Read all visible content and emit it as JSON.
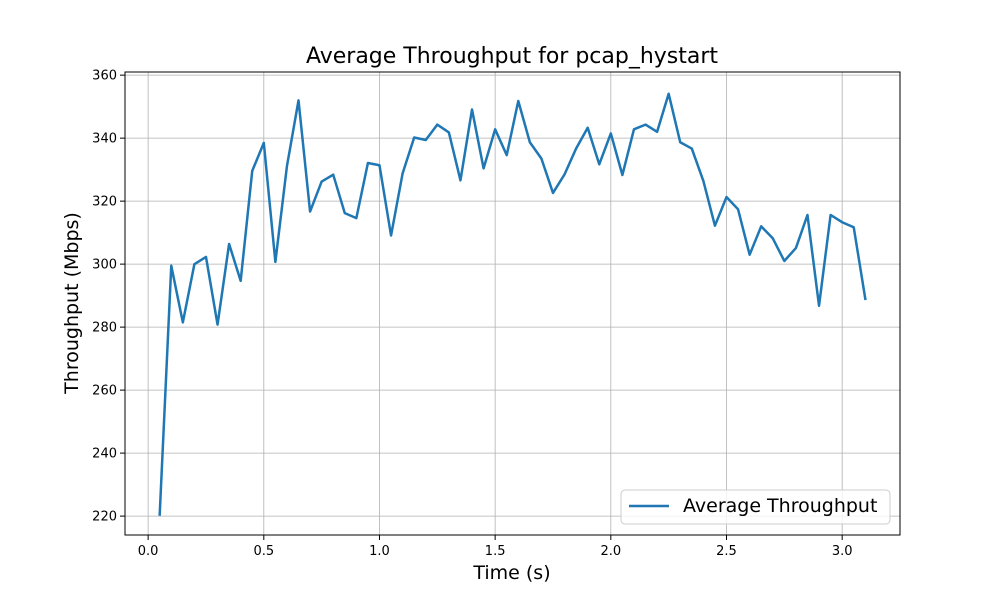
{
  "chart_data": {
    "type": "line",
    "title": "Average Throughput for pcap_hystart",
    "xlabel": "Time (s)",
    "ylabel": "Throughput (Mbps)",
    "xlim": [
      -0.1,
      3.25
    ],
    "ylim": [
      214,
      361
    ],
    "xticks": [
      0.0,
      0.5,
      1.0,
      1.5,
      2.0,
      2.5,
      3.0
    ],
    "xtick_labels": [
      "0.0",
      "0.5",
      "1.0",
      "1.5",
      "2.0",
      "2.5",
      "3.0"
    ],
    "yticks": [
      220,
      240,
      260,
      280,
      300,
      320,
      340,
      360
    ],
    "ytick_labels": [
      "220",
      "240",
      "260",
      "280",
      "300",
      "320",
      "340",
      "360"
    ],
    "grid": true,
    "legend_position": "lower-right",
    "series": [
      {
        "name": "Average Throughput",
        "color": "#1f77b4",
        "x": [
          0.05,
          0.1,
          0.15,
          0.2,
          0.25,
          0.3,
          0.35,
          0.4,
          0.45,
          0.5,
          0.55,
          0.6,
          0.65,
          0.7,
          0.75,
          0.8,
          0.85,
          0.9,
          0.95,
          1.0,
          1.05,
          1.1,
          1.15,
          1.2,
          1.25,
          1.3,
          1.35,
          1.4,
          1.45,
          1.5,
          1.55,
          1.6,
          1.65,
          1.7,
          1.75,
          1.8,
          1.85,
          1.9,
          1.95,
          2.0,
          2.05,
          2.1,
          2.15,
          2.2,
          2.25,
          2.3,
          2.35,
          2.4,
          2.45,
          2.5,
          2.55,
          2.6,
          2.65,
          2.7,
          2.75,
          2.8,
          2.85,
          2.9,
          2.95,
          3.0,
          3.05,
          3.1
        ],
        "values": [
          220.5,
          299.5,
          281.5,
          300.0,
          302.3,
          280.8,
          306.4,
          294.7,
          329.6,
          338.5,
          300.7,
          331.1,
          352.0,
          316.7,
          326.2,
          328.4,
          316.2,
          314.6,
          332.1,
          331.4,
          309.1,
          328.8,
          340.2,
          339.4,
          344.3,
          341.8,
          326.6,
          349.1,
          330.4,
          342.8,
          334.6,
          351.8,
          338.7,
          333.5,
          322.6,
          328.5,
          336.7,
          343.3,
          331.7,
          341.5,
          328.3,
          342.8,
          344.3,
          342.0,
          354.1,
          338.7,
          336.7,
          326.4,
          312.2,
          321.3,
          317.4,
          303.0,
          312.0,
          308.2,
          301.0,
          305.1,
          315.6,
          286.8,
          315.6,
          313.3,
          311.7,
          289.0
        ]
      }
    ]
  }
}
